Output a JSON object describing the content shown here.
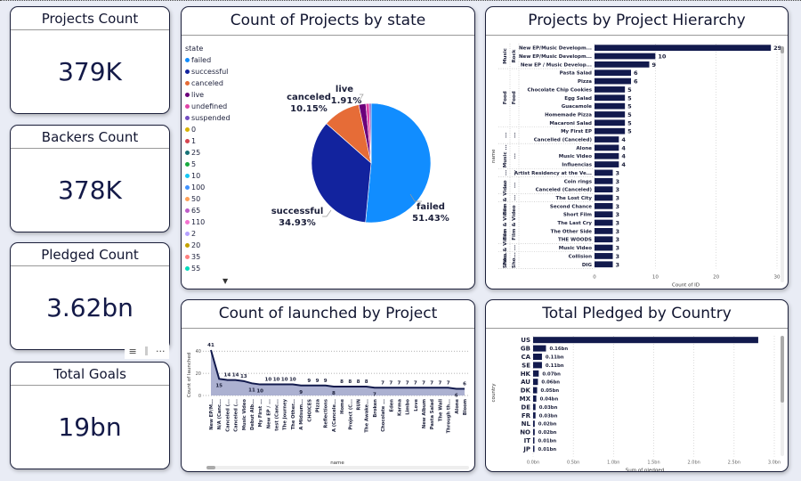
{
  "kpis": [
    {
      "title": "Projects Count",
      "value": "379K"
    },
    {
      "title": "Backers Count",
      "value": "378K"
    },
    {
      "title": "Pledged Count",
      "value": "3.62bn"
    },
    {
      "title": "Total Goals",
      "value": "19bn"
    }
  ],
  "visual_header": {
    "filter_icon": "≡",
    "more_icon": "···"
  },
  "colors": {
    "bar": "#121a4d",
    "background": "#e9ecf5",
    "area_fill": "#a3a8cc"
  },
  "chart_data": [
    {
      "type": "pie",
      "title": "Count of Projects by state",
      "legend_title": "state",
      "legend": [
        {
          "label": "failed",
          "color": "#118dff"
        },
        {
          "label": "successful",
          "color": "#12239e"
        },
        {
          "label": "canceled",
          "color": "#e66c37"
        },
        {
          "label": "live",
          "color": "#6b007b"
        },
        {
          "label": "undefined",
          "color": "#e044a7"
        },
        {
          "label": "suspended",
          "color": "#744ec2"
        },
        {
          "label": "0",
          "color": "#d9b300"
        },
        {
          "label": "1",
          "color": "#d64550"
        },
        {
          "label": "25",
          "color": "#197278"
        },
        {
          "label": "5",
          "color": "#1aab40"
        },
        {
          "label": "10",
          "color": "#15c6f4"
        },
        {
          "label": "100",
          "color": "#4092ff"
        },
        {
          "label": "50",
          "color": "#ffa058"
        },
        {
          "label": "65",
          "color": "#be5dc9"
        },
        {
          "label": "110",
          "color": "#f472d0"
        },
        {
          "label": "2",
          "color": "#b5a1ff"
        },
        {
          "label": "20",
          "color": "#c4a200"
        },
        {
          "label": "35",
          "color": "#ff8080"
        },
        {
          "label": "55",
          "color": "#00dbbc"
        }
      ],
      "slices": [
        {
          "label": "failed",
          "percent": 51.43,
          "color": "#118dff",
          "show_label": true,
          "label_text": "51.43%"
        },
        {
          "label": "successful",
          "percent": 34.93,
          "color": "#12239e",
          "show_label": true,
          "label_text": "34.93%"
        },
        {
          "label": "canceled",
          "percent": 10.15,
          "color": "#e66c37",
          "show_label": true,
          "label_text": "10.15%"
        },
        {
          "label": "live",
          "percent": 1.91,
          "color": "#6b007b",
          "show_label": true,
          "label_text": "1.91%"
        },
        {
          "label": "undefined",
          "percent": 0.94,
          "color": "#e044a7",
          "show_label": false,
          "label_text": ""
        },
        {
          "label": "suspended",
          "percent": 0.49,
          "color": "#744ec2",
          "show_label": false,
          "label_text": ""
        }
      ]
    },
    {
      "type": "bar",
      "orientation": "horizontal",
      "title": "Projects by Project Hierarchy",
      "ylabel": "name",
      "xlabel": "Count of ID",
      "xlim": [
        0,
        30
      ],
      "xticks": [
        "0",
        "10",
        "20",
        "30"
      ],
      "groups": [
        {
          "outer": "Music",
          "inner": "Rock",
          "rows": [
            0,
            2
          ]
        },
        {
          "outer": "Food",
          "inner": "Food",
          "rows": [
            3,
            9
          ]
        },
        {
          "outer": "...",
          "inner": "...",
          "rows": [
            10,
            11
          ]
        },
        {
          "outer": "Music ...",
          "inner": "...",
          "rows": [
            12,
            14
          ]
        },
        {
          "outer": "...",
          "inner": "...",
          "rows": [
            15,
            15
          ]
        },
        {
          "outer": "...",
          "inner": "...",
          "rows": [
            16,
            17
          ]
        },
        {
          "outer": "Film & Video",
          "inner": "...",
          "rows": [
            18,
            18
          ]
        },
        {
          "outer": "Film & Video",
          "inner": "Film & Video",
          "rows": [
            19,
            23
          ]
        },
        {
          "outer": "Film & Video",
          "inner": "...",
          "rows": [
            24,
            24
          ]
        },
        {
          "outer": "Sho...",
          "inner": "Sho...",
          "rows": [
            25,
            26
          ]
        }
      ],
      "categories": [
        "New EP/Music Developm...",
        "New EP/Music Developm...",
        "New EP / Music Develop...",
        "Pasta Salad",
        "Pizza",
        "Chocolate Chip Cookies",
        "Egg Salad",
        "Guacamole",
        "Homemade Pizza",
        "Macaroni Salad",
        "My First EP",
        "Cancelled (Canceled)",
        "Alone",
        "Music Video",
        "Influencias",
        "Artist Residency at the Ve...",
        "Coin rings",
        "Canceled (Canceled)",
        "The Lost City",
        "Second Chance",
        "Short Film",
        "The Last Cry",
        "The Other Side",
        "THE WOODS",
        "Music Video",
        "Collision",
        "DIG"
      ],
      "values": [
        29,
        10,
        9,
        6,
        6,
        5,
        5,
        5,
        5,
        5,
        5,
        4,
        4,
        4,
        4,
        3,
        3,
        3,
        3,
        3,
        3,
        3,
        3,
        3,
        3,
        3,
        3
      ]
    },
    {
      "type": "area",
      "title": "Count of launched by Project",
      "xlabel": "name",
      "ylabel": "Count of launched",
      "ylim": [
        0,
        45
      ],
      "yticks": [
        "0",
        "20",
        "40"
      ],
      "categories": [
        "New EP/M...",
        "N/A (Canc...",
        "Canceled (...",
        "Canceled (...",
        "Music Video",
        "Debut Alb...",
        "My First ...",
        "New EP / ...",
        "test (Canc...",
        "The Journey",
        "The Other...",
        "A Midsum...",
        "CHOICES",
        "Pizza",
        "Reflections",
        "A (Cancele...",
        "Home",
        "Project (C...",
        "RUN",
        "The Awake...",
        "Broken",
        "Chocolate ...",
        "Eden",
        "Karma",
        "Limbo",
        "Love",
        "New Album",
        "Pasta Salad",
        "The Wall",
        "Through th...",
        "Alone",
        "Bloom"
      ],
      "values": [
        41,
        15,
        14,
        14,
        13,
        11,
        10,
        10,
        10,
        10,
        10,
        9,
        9,
        9,
        9,
        8,
        8,
        8,
        8,
        8,
        7,
        7,
        7,
        7,
        7,
        7,
        7,
        7,
        7,
        7,
        6,
        6
      ],
      "label_below": [
        1,
        5,
        6,
        11,
        15,
        20,
        30
      ]
    },
    {
      "type": "bar",
      "orientation": "horizontal",
      "title": "Total Pledged by Country",
      "ylabel": "country",
      "xlabel": "Sum of pledged",
      "xlim": [
        0,
        3.0
      ],
      "xticks": [
        "0.0bn",
        "0.5bn",
        "1.0bn",
        "1.5bn",
        "2.0bn",
        "2.5bn",
        "3.0bn"
      ],
      "categories": [
        "US",
        "GB",
        "CA",
        "SE",
        "HK",
        "AU",
        "DK",
        "MX",
        "DE",
        "FR",
        "NL",
        "NO",
        "IT",
        "JP"
      ],
      "values": [
        2.8,
        0.16,
        0.11,
        0.11,
        0.07,
        0.06,
        0.05,
        0.04,
        0.03,
        0.03,
        0.02,
        0.02,
        0.01,
        0.01
      ],
      "labels": [
        "",
        "0.16bn",
        "0.11bn",
        "0.11bn",
        "0.07bn",
        "0.06bn",
        "0.05bn",
        "0.04bn",
        "0.03bn",
        "0.03bn",
        "0.02bn",
        "0.02bn",
        "0.01bn",
        "0.01bn"
      ]
    }
  ]
}
